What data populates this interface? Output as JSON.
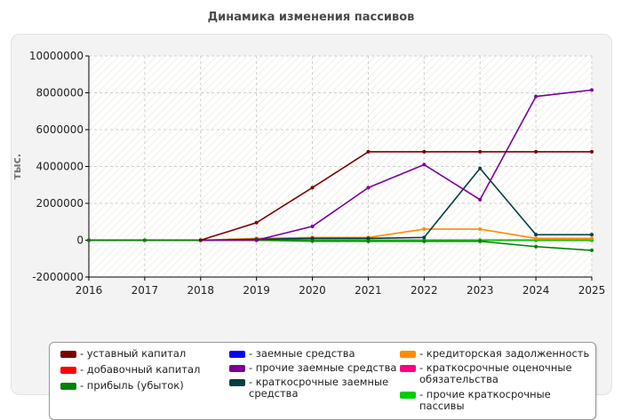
{
  "chart_data": {
    "type": "line",
    "title": "Динамика изменения пассивов",
    "ylabel": "тыс.",
    "xlabel": "",
    "x": [
      2016,
      2017,
      2018,
      2019,
      2020,
      2021,
      2022,
      2023,
      2024,
      2025
    ],
    "xlim": [
      2016,
      2025
    ],
    "ylim": [
      -2000000,
      10000000
    ],
    "yticks": [
      -2000000,
      0,
      2000000,
      4000000,
      6000000,
      8000000,
      10000000
    ],
    "grid": true,
    "legend_position": "bottom",
    "series": [
      {
        "name": "уставный капитал",
        "color": "#7a0000",
        "x": [
          2018,
          2019,
          2020,
          2021,
          2022,
          2023,
          2024,
          2025
        ],
        "values": [
          0,
          950000,
          2850000,
          4800000,
          4800000,
          4800000,
          4800000,
          4800000
        ]
      },
      {
        "name": "добавочный капитал",
        "color": "#ff0000",
        "x": [
          2016,
          2017,
          2018,
          2019,
          2020,
          2021,
          2022,
          2023,
          2024,
          2025
        ],
        "values": [
          0,
          0,
          0,
          0,
          0,
          0,
          0,
          0,
          0,
          0
        ]
      },
      {
        "name": "прибыль (убыток)",
        "color": "#008000",
        "x": [
          2016,
          2017,
          2018,
          2019,
          2020,
          2021,
          2022,
          2023,
          2024,
          2025
        ],
        "values": [
          0,
          0,
          0,
          0,
          -50000,
          -60000,
          -60000,
          -60000,
          -350000,
          -550000
        ]
      },
      {
        "name": "заемные средства",
        "color": "#0000ff",
        "x": [
          2016,
          2017,
          2018,
          2019,
          2020,
          2021,
          2022,
          2023,
          2024,
          2025
        ],
        "values": [
          0,
          0,
          0,
          0,
          0,
          0,
          0,
          0,
          0,
          0
        ]
      },
      {
        "name": "прочие заемные средства",
        "color": "#7b0099",
        "x": [
          2018,
          2019,
          2020,
          2021,
          2022,
          2023,
          2024,
          2025
        ],
        "values": [
          0,
          0,
          750000,
          2850000,
          4100000,
          2200000,
          7800000,
          8150000
        ]
      },
      {
        "name": "краткосрочные заемные средства",
        "color": "#004040",
        "x": [
          2018,
          2019,
          2020,
          2021,
          2022,
          2023,
          2024,
          2025
        ],
        "values": [
          0,
          50000,
          100000,
          100000,
          150000,
          3900000,
          300000,
          300000
        ]
      },
      {
        "name": "кредиторская задолженность",
        "color": "#ff8c00",
        "x": [
          2018,
          2019,
          2020,
          2021,
          2022,
          2023,
          2024,
          2025
        ],
        "values": [
          0,
          100000,
          150000,
          150000,
          600000,
          600000,
          100000,
          100000
        ]
      },
      {
        "name": "краткосрочные оценочные обязательства",
        "color": "#ff007f",
        "x": [
          2016,
          2017,
          2018,
          2019,
          2020,
          2021,
          2022,
          2023,
          2024,
          2025
        ],
        "values": [
          0,
          0,
          0,
          0,
          0,
          0,
          0,
          0,
          0,
          0
        ]
      },
      {
        "name": "прочие краткосрочные пассивы",
        "color": "#00cc00",
        "x": [
          2016,
          2017,
          2018,
          2019,
          2020,
          2021,
          2022,
          2023,
          2024,
          2025
        ],
        "values": [
          0,
          0,
          0,
          0,
          0,
          0,
          0,
          0,
          0,
          0
        ]
      }
    ]
  }
}
